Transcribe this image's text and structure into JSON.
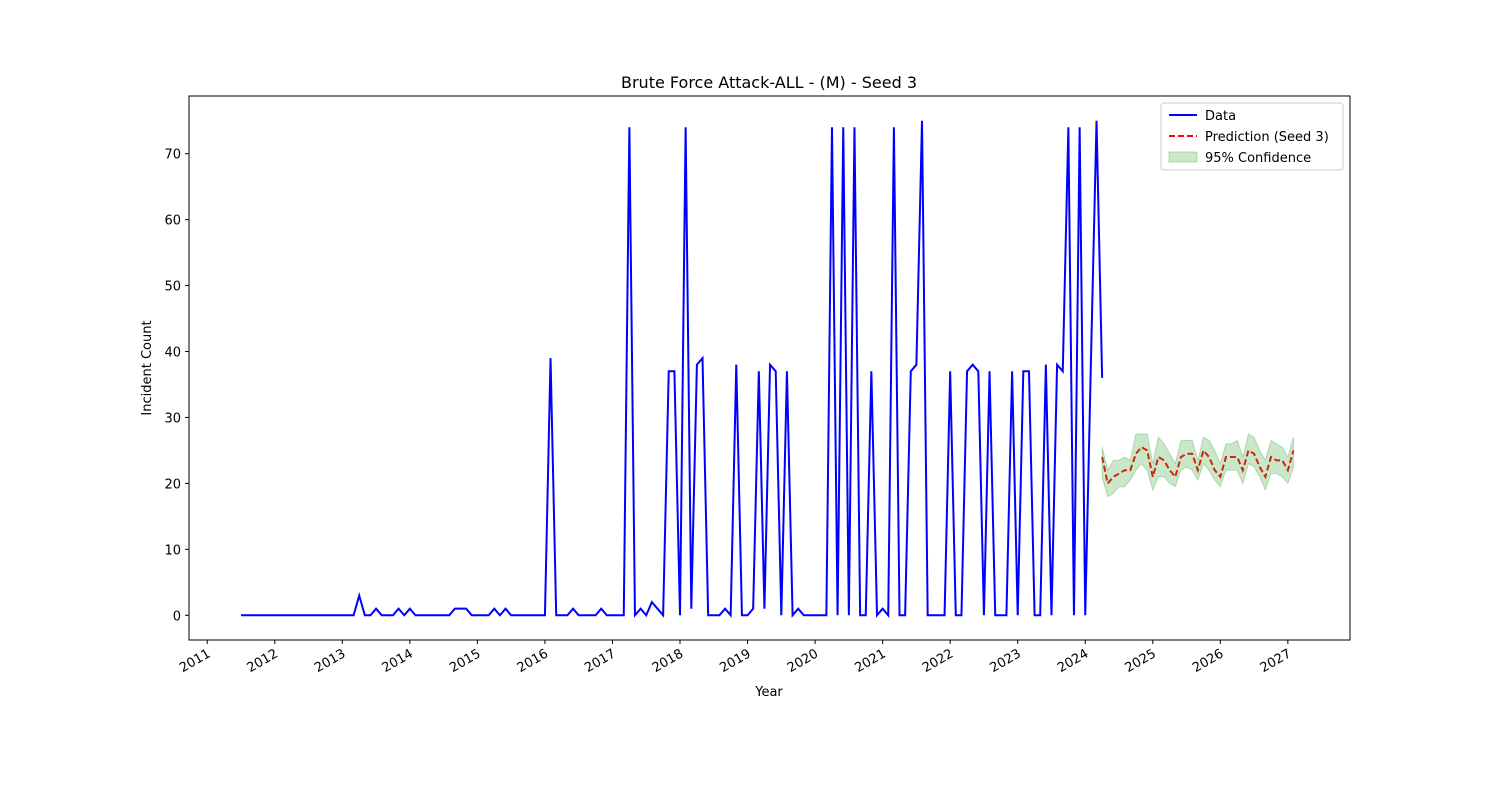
{
  "chart_data": {
    "type": "line",
    "title": "Brute Force Attack-ALL - (M) - Seed 3",
    "x_label": "Year",
    "y_label": "Incident Count",
    "xlim": [
      2010.73,
      2027.92
    ],
    "ylim": [
      -3.75,
      78.75
    ],
    "xticks": [
      2011,
      2012,
      2013,
      2014,
      2015,
      2016,
      2017,
      2018,
      2019,
      2020,
      2021,
      2022,
      2023,
      2024,
      2025,
      2026,
      2027
    ],
    "yticks": [
      0,
      10,
      20,
      30,
      40,
      50,
      60,
      70
    ],
    "legend": "upper right",
    "series": [
      {
        "name": "Data",
        "color": "#0000ff",
        "style": "solid",
        "x": [
          2011.5,
          2011.583,
          2011.667,
          2011.75,
          2011.833,
          2011.917,
          2012,
          2012.083,
          2012.167,
          2012.25,
          2012.333,
          2012.417,
          2012.5,
          2012.583,
          2012.667,
          2012.75,
          2012.833,
          2012.917,
          2013,
          2013.083,
          2013.167,
          2013.25,
          2013.333,
          2013.417,
          2013.5,
          2013.583,
          2013.667,
          2013.75,
          2013.833,
          2013.917,
          2014,
          2014.083,
          2014.167,
          2014.25,
          2014.333,
          2014.417,
          2014.5,
          2014.583,
          2014.667,
          2014.75,
          2014.833,
          2014.917,
          2015,
          2015.083,
          2015.167,
          2015.25,
          2015.333,
          2015.417,
          2015.5,
          2015.583,
          2015.667,
          2015.75,
          2015.833,
          2015.917,
          2016,
          2016.083,
          2016.167,
          2016.25,
          2016.333,
          2016.417,
          2016.5,
          2016.583,
          2016.667,
          2016.75,
          2016.833,
          2016.917,
          2017,
          2017.083,
          2017.167,
          2017.25,
          2017.333,
          2017.417,
          2017.5,
          2017.583,
          2017.667,
          2017.75,
          2017.833,
          2017.917,
          2018,
          2018.083,
          2018.167,
          2018.25,
          2018.333,
          2018.417,
          2018.5,
          2018.583,
          2018.667,
          2018.75,
          2018.833,
          2018.917,
          2019,
          2019.083,
          2019.167,
          2019.25,
          2019.333,
          2019.417,
          2019.5,
          2019.583,
          2019.667,
          2019.75,
          2019.833,
          2019.917,
          2020,
          2020.083,
          2020.167,
          2020.25,
          2020.333,
          2020.417,
          2020.5,
          2020.583,
          2020.667,
          2020.75,
          2020.833,
          2020.917,
          2021,
          2021.083,
          2021.167,
          2021.25,
          2021.333,
          2021.417,
          2021.5,
          2021.583,
          2021.667,
          2021.75,
          2021.833,
          2021.917,
          2022,
          2022.083,
          2022.167,
          2022.25,
          2022.333,
          2022.417,
          2022.5,
          2022.583,
          2022.667,
          2022.75,
          2022.833,
          2022.917,
          2023,
          2023.083,
          2023.167,
          2023.25,
          2023.333,
          2023.417,
          2023.5,
          2023.583,
          2023.667,
          2023.75,
          2023.833,
          2023.917,
          2024,
          2024.083,
          2024.167,
          2024.25
        ],
        "values": [
          0,
          0,
          0,
          0,
          0,
          0,
          0,
          0,
          0,
          0,
          0,
          0,
          0,
          0,
          0,
          0,
          0,
          0,
          0,
          0,
          0,
          3,
          0,
          0,
          1,
          0,
          0,
          0,
          1,
          0,
          1,
          0,
          0,
          0,
          0,
          0,
          0,
          0,
          1,
          1,
          1,
          0,
          0,
          0,
          0,
          1,
          0,
          1,
          0,
          0,
          0,
          0,
          0,
          0,
          0,
          39,
          0,
          0,
          0,
          1,
          0,
          0,
          0,
          0,
          1,
          0,
          0,
          0,
          0,
          74,
          0,
          1,
          0,
          2,
          1,
          0,
          37,
          37,
          0,
          74,
          1,
          38,
          39,
          0,
          0,
          0,
          1,
          0,
          38,
          0,
          0,
          1,
          37,
          1,
          38,
          37,
          0,
          37,
          0,
          1,
          0,
          0,
          0,
          0,
          0,
          74,
          0,
          74,
          0,
          74,
          0,
          0,
          37,
          0,
          1,
          0,
          74,
          0,
          0,
          37,
          38,
          75,
          0,
          0,
          0,
          0,
          37,
          0,
          0,
          37,
          38,
          37,
          0,
          37,
          0,
          0,
          0,
          37,
          0,
          37,
          37,
          0,
          0,
          38,
          0,
          38,
          37,
          74,
          0,
          74,
          0,
          38,
          75,
          36
        ]
      },
      {
        "name": "Prediction (Seed 3)",
        "color": "#ff0000",
        "style": "dashed",
        "x": [
          2024.25,
          2024.333,
          2024.417,
          2024.5,
          2024.583,
          2024.667,
          2024.75,
          2024.833,
          2024.917,
          2025,
          2025.083,
          2025.167,
          2025.25,
          2025.333,
          2025.417,
          2025.5,
          2025.583,
          2025.667,
          2025.75,
          2025.833,
          2025.917,
          2026,
          2026.083,
          2026.167,
          2026.25,
          2026.333,
          2026.417,
          2026.5,
          2026.583,
          2026.667,
          2026.75,
          2026.833,
          2026.917,
          2027,
          2027.083
        ],
        "values": [
          24,
          20,
          21,
          21.5,
          22,
          22,
          24.5,
          25.5,
          25,
          21,
          24,
          23.5,
          22,
          21,
          24,
          24.5,
          24.5,
          22,
          25,
          24,
          22,
          21,
          24,
          24,
          24,
          22,
          25,
          24.5,
          22.5,
          21,
          24,
          23.5,
          23.5,
          22,
          25
        ]
      },
      {
        "name": "95% Confidence",
        "color": "#2ca02c",
        "style": "band",
        "x": [
          2024.25,
          2024.333,
          2024.417,
          2024.5,
          2024.583,
          2024.667,
          2024.75,
          2024.833,
          2024.917,
          2025,
          2025.083,
          2025.167,
          2025.25,
          2025.333,
          2025.417,
          2025.5,
          2025.583,
          2025.667,
          2025.75,
          2025.833,
          2025.917,
          2026,
          2026.083,
          2026.167,
          2026.25,
          2026.333,
          2026.417,
          2026.5,
          2026.583,
          2026.667,
          2026.75,
          2026.833,
          2026.917,
          2027,
          2027.083
        ],
        "lower": [
          21,
          18,
          18.5,
          19.5,
          19.5,
          20.5,
          22,
          23,
          22,
          19,
          21,
          21,
          20,
          19.5,
          22,
          22.5,
          22,
          20.5,
          23,
          22,
          20.5,
          19.5,
          22,
          22,
          22,
          20,
          23,
          22.5,
          21,
          19,
          21.5,
          21.5,
          21,
          20,
          22.5
        ],
        "upper": [
          25.5,
          22,
          23.5,
          23.5,
          24,
          23.5,
          27.5,
          27.5,
          27.5,
          23,
          27,
          26,
          24.5,
          23,
          26.5,
          26.5,
          26.5,
          23.5,
          27,
          26.5,
          25,
          23,
          26,
          26,
          26.5,
          24,
          27.5,
          27,
          25,
          23.5,
          26.5,
          26,
          25.5,
          24,
          27
        ]
      }
    ]
  }
}
